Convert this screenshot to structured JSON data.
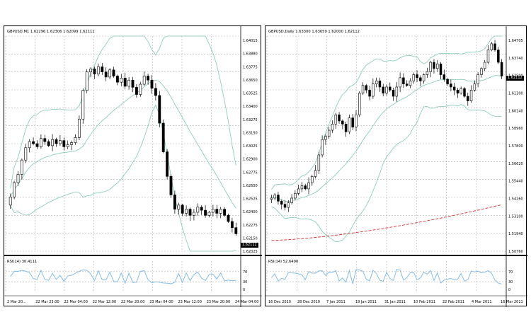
{
  "colors": {
    "background": "#ffffff",
    "grid": "#b0b0b0",
    "candle": "#000000",
    "bands": "#7fc8b0",
    "moving_average": "#d83030",
    "rsi_line": "#7ab6e6"
  },
  "left_chart": {
    "header": "GBPUSD,M1  1.62296  1.62306  1.62099  1.62112",
    "price_tag": "1.62112",
    "price_axis": [
      "1.64015",
      "1.63880",
      "1.63775",
      "1.63650",
      "1.63525",
      "1.63400",
      "1.63275",
      "1.63150",
      "1.63025",
      "1.62900",
      "1.62775",
      "1.62650",
      "1.62525",
      "1.62400",
      "1.62275",
      "1.62150",
      "1.62025"
    ],
    "rsi_label": "RSI(14) 30.4111",
    "rsi_axis": [
      "70",
      "30",
      "0"
    ],
    "time_axis": [
      "2 Mar 20...",
      "22 Mar 23:00",
      "22 Mar 04:00",
      "22 Mar 12:00",
      "22 Mar 20:00",
      "23 Mar 04:00",
      "23 Mar 12:00",
      "23 Mar 20:00",
      "24 Mar 04:00"
    ]
  },
  "right_chart": {
    "header": "GBPUSD,Daily  1.63300  1.63659  1.62000  1.62112",
    "price_tag": "1.62112",
    "price_axis": [
      "1.64705",
      "1.63740",
      "1.62500",
      "1.61300",
      "1.60140",
      "1.58960",
      "1.57800",
      "1.56620",
      "1.55440",
      "1.54260",
      "1.53100",
      "1.51940",
      "1.50760"
    ],
    "rsi_label": "RSI(14) 52.6490",
    "rsi_axis": [
      "70",
      "30",
      "0"
    ],
    "time_axis": [
      "16 Dec 2010",
      "28 Dec 2010",
      "7 Jan 2011",
      "19 Jan 2011",
      "31 Jan 2011",
      "10 Feb 2011",
      "22 Feb 2011",
      "4 Mar 2011",
      "16 Mar 2011"
    ]
  },
  "chart_data": [
    {
      "type": "candlestick",
      "title": "GBPUSD,M1",
      "x": [
        0,
        1,
        2,
        3,
        4,
        5,
        6,
        7,
        8,
        9,
        10,
        11,
        12,
        13,
        14,
        15,
        16,
        17,
        18,
        19,
        20,
        21,
        22,
        23,
        24,
        25,
        26,
        27,
        28,
        29,
        30,
        31,
        32,
        33,
        34,
        35,
        36,
        37,
        38,
        39,
        40,
        41,
        42,
        43,
        44,
        45,
        46,
        47,
        48,
        49,
        50,
        51,
        52,
        53,
        54,
        55,
        56,
        57,
        58,
        59
      ],
      "close": [
        1.6248,
        1.6262,
        1.627,
        1.6284,
        1.6296,
        1.6302,
        1.63,
        1.6297,
        1.6305,
        1.6302,
        1.6298,
        1.6304,
        1.63,
        1.6303,
        1.6297,
        1.6299,
        1.6301,
        1.6306,
        1.6324,
        1.6352,
        1.637,
        1.6373,
        1.6368,
        1.6375,
        1.637,
        1.6365,
        1.6372,
        1.6366,
        1.636,
        1.6364,
        1.6356,
        1.6362,
        1.6355,
        1.6348,
        1.6358,
        1.6366,
        1.6362,
        1.6354,
        1.6347,
        1.632,
        1.6292,
        1.6268,
        1.625,
        1.6236,
        1.624,
        1.6232,
        1.6236,
        1.623,
        1.6233,
        1.6238,
        1.6235,
        1.623,
        1.6233,
        1.6236,
        1.6232,
        1.6236,
        1.623,
        1.6224,
        1.6218,
        1.6212
      ],
      "ylim": [
        1.6195,
        1.6405
      ]
    },
    {
      "type": "candlestick",
      "title": "GBPUSD,Daily",
      "x": [
        0,
        1,
        2,
        3,
        4,
        5,
        6,
        7,
        8,
        9,
        10,
        11,
        12,
        13,
        14,
        15,
        16,
        17,
        18,
        19,
        20,
        21,
        22,
        23,
        24,
        25,
        26,
        27,
        28,
        29,
        30,
        31,
        32,
        33,
        34,
        35,
        36,
        37,
        38,
        39,
        40,
        41,
        42,
        43,
        44,
        45,
        46,
        47,
        48,
        49,
        50,
        51,
        52,
        53,
        54,
        55,
        56,
        57,
        58,
        59,
        60,
        61,
        62,
        63,
        64,
        65,
        66,
        67,
        68
      ],
      "close": [
        1.542,
        1.544,
        1.54,
        1.538,
        1.536,
        1.539,
        1.542,
        1.545,
        1.548,
        1.55,
        1.548,
        1.552,
        1.556,
        1.56,
        1.57,
        1.58,
        1.582,
        1.586,
        1.59,
        1.596,
        1.592,
        1.59,
        1.585,
        1.594,
        1.588,
        1.596,
        1.61,
        1.615,
        1.612,
        1.608,
        1.616,
        1.618,
        1.614,
        1.61,
        1.614,
        1.612,
        1.608,
        1.614,
        1.62,
        1.616,
        1.615,
        1.618,
        1.622,
        1.62,
        1.618,
        1.622,
        1.624,
        1.63,
        1.626,
        1.629,
        1.622,
        1.619,
        1.616,
        1.614,
        1.612,
        1.61,
        1.613,
        1.608,
        1.605,
        1.612,
        1.616,
        1.622,
        1.626,
        1.63,
        1.638,
        1.642,
        1.638,
        1.63,
        1.6211
      ],
      "ylim": [
        1.5076,
        1.647
      ]
    }
  ]
}
